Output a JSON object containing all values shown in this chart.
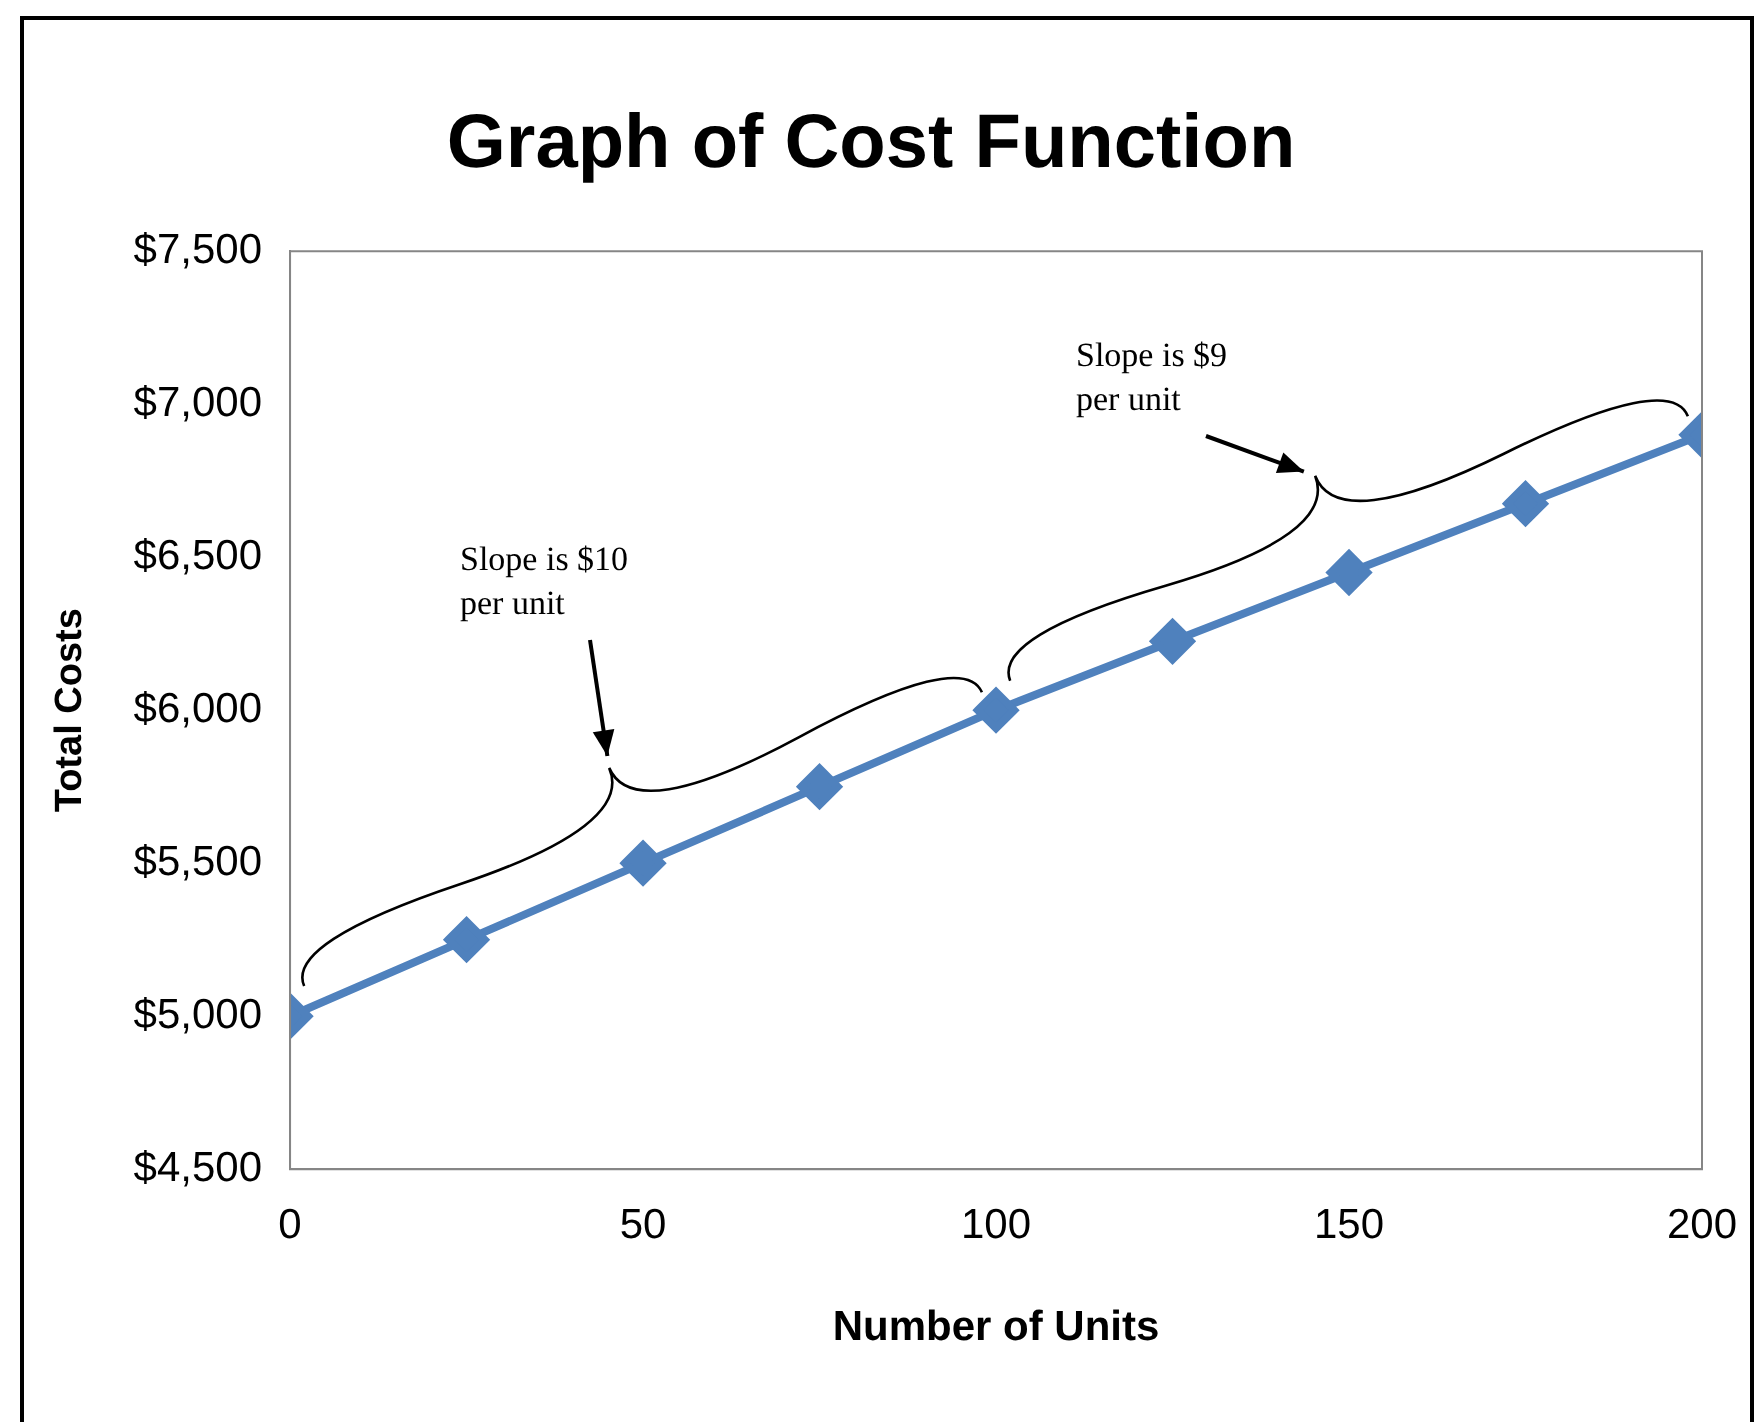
{
  "chart_data": {
    "type": "line",
    "title": "Graph of Cost Function",
    "xlabel": "Number of Units",
    "ylabel": "Total Costs",
    "x": [
      0,
      25,
      50,
      75,
      100,
      125,
      150,
      175,
      200
    ],
    "series": [
      {
        "color": "#4f81bd",
        "values": [
          5000,
          5250,
          5500,
          5750,
          6000,
          6225,
          6450,
          6675,
          6900
        ]
      }
    ],
    "xlim": [
      0,
      200
    ],
    "xticks": [
      0,
      50,
      100,
      150,
      200
    ],
    "ylim": [
      4500,
      7500
    ],
    "yticks": [
      {
        "value": 4500,
        "label": "$4,500"
      },
      {
        "value": 5000,
        "label": "$5,000"
      },
      {
        "value": 5500,
        "label": "$5,500"
      },
      {
        "value": 6000,
        "label": "$6,000"
      },
      {
        "value": 6500,
        "label": "$6,500"
      },
      {
        "value": 7000,
        "label": "$7,000"
      },
      {
        "value": 7500,
        "label": "$7,500"
      }
    ],
    "annotations": [
      "Slope is $10 per unit",
      "Slope is $9 per unit"
    ],
    "grid": false,
    "legend": false,
    "marker": "diamond",
    "line_style": "solid"
  }
}
